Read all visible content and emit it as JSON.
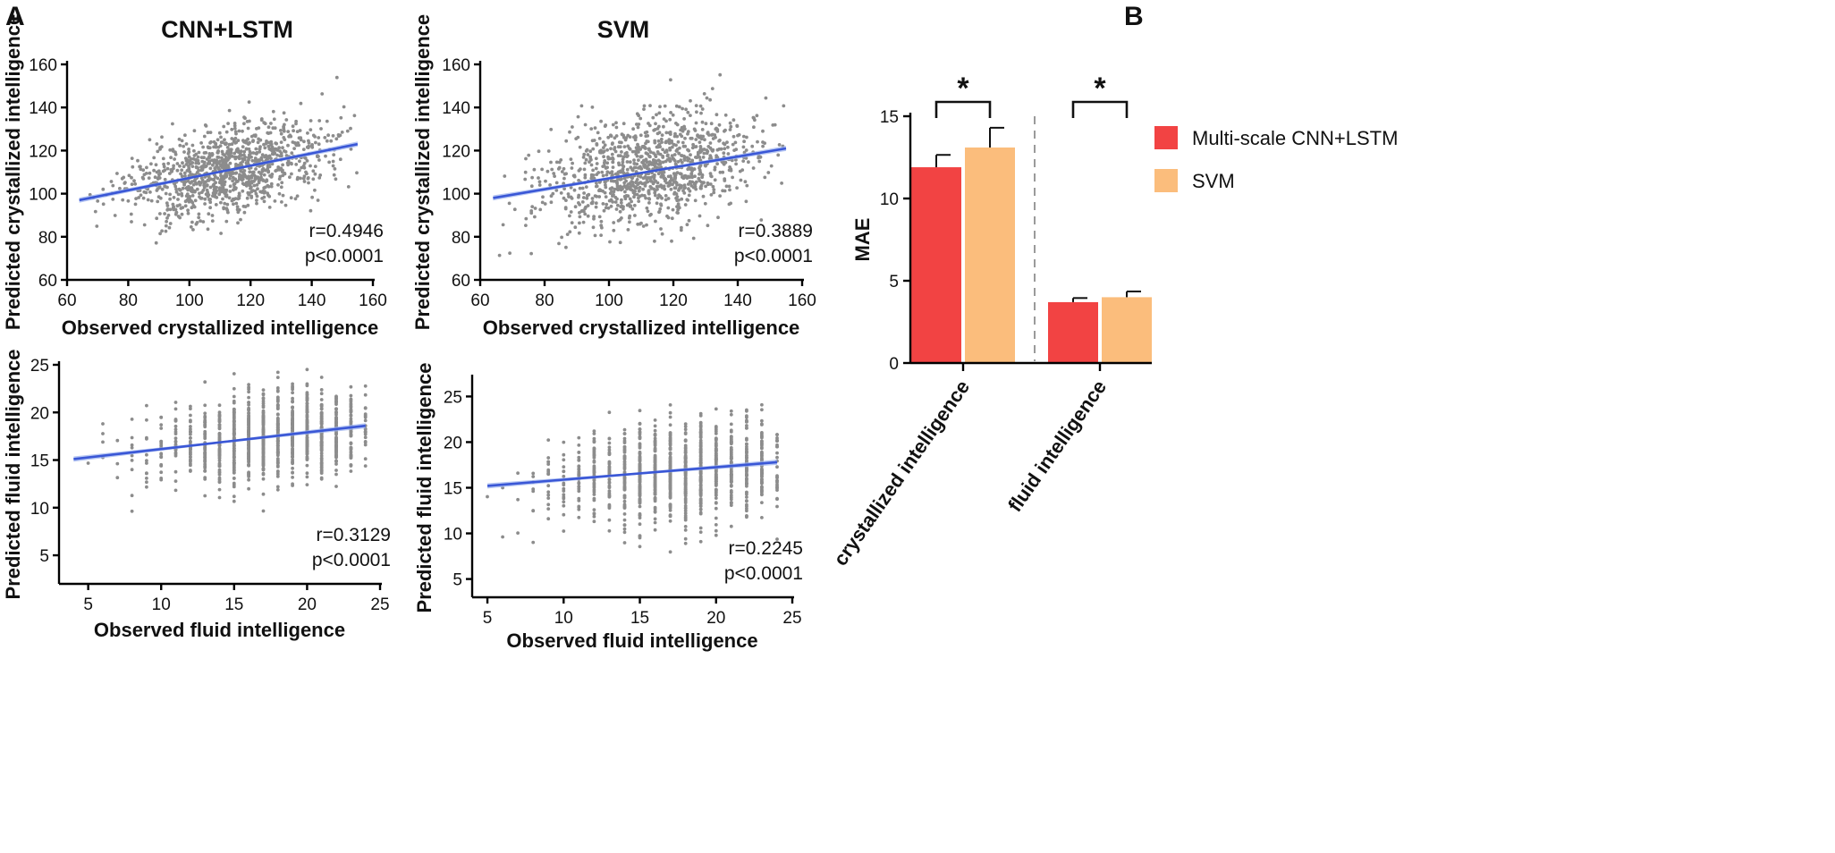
{
  "panel_labels": {
    "a": "A",
    "b": "B"
  },
  "colors": {
    "points": "#8c8c8c",
    "fit_line": "#3a57d6",
    "ci_band": "#9fb4ef",
    "bar_cnn": "#f24343",
    "bar_svm": "#fbbd7c",
    "divider": "#9a9a9a"
  },
  "chart_data": [
    {
      "id": "cnn_crystallized",
      "type": "scatter",
      "title": "CNN+LSTM",
      "xlabel": "Observed crystallized intelligence",
      "ylabel": "Predicted crystallized intelligence",
      "xlim": [
        60,
        160
      ],
      "ylim": [
        60,
        160
      ],
      "xticks": [
        60,
        80,
        100,
        120,
        140,
        160
      ],
      "yticks": [
        60,
        80,
        100,
        120,
        140,
        160
      ],
      "fit": {
        "x": [
          64,
          155
        ],
        "y": [
          97,
          123
        ]
      },
      "r_text": "r=0.4946",
      "p_text": "p<0.0001",
      "sample": {
        "n": 1100,
        "x_min": 64,
        "x_max": 155,
        "x_mean": 113,
        "x_sd": 17,
        "resid_sd": 9.5,
        "discrete": false,
        "seed": 11
      }
    },
    {
      "id": "svm_crystallized",
      "type": "scatter",
      "title": "SVM",
      "xlabel": "Observed crystallized intelligence",
      "ylabel": "Predicted crystallized intelligence",
      "xlim": [
        60,
        160
      ],
      "ylim": [
        60,
        160
      ],
      "xticks": [
        60,
        80,
        100,
        120,
        140,
        160
      ],
      "yticks": [
        60,
        80,
        100,
        120,
        140,
        160
      ],
      "fit": {
        "x": [
          64,
          155
        ],
        "y": [
          98,
          121
        ]
      },
      "r_text": "r=0.3889",
      "p_text": "p<0.0001",
      "sample": {
        "n": 1100,
        "x_min": 64,
        "x_max": 155,
        "x_mean": 113,
        "x_sd": 17,
        "resid_sd": 12,
        "discrete": false,
        "seed": 23
      }
    },
    {
      "id": "cnn_fluid",
      "type": "scatter",
      "title": "",
      "xlabel": "Observed fluid intelligence",
      "ylabel": "Predicted fluid intelligence",
      "xlim": [
        3,
        25
      ],
      "ylim": [
        2,
        25
      ],
      "xticks": [
        5,
        10,
        15,
        20,
        25
      ],
      "yticks": [
        5,
        10,
        15,
        20,
        25
      ],
      "fit": {
        "x": [
          4,
          24
        ],
        "y": [
          15.1,
          18.6
        ]
      },
      "r_text": "r=0.3129",
      "p_text": "p<0.0001",
      "sample": {
        "n": 1200,
        "x_min": 4,
        "x_max": 24,
        "x_mean": 18,
        "x_sd": 4.2,
        "resid_sd": 2.3,
        "discrete": true,
        "seed": 37
      }
    },
    {
      "id": "svm_fluid",
      "type": "scatter",
      "title": "",
      "xlabel": "Observed fluid intelligence",
      "ylabel": "Predicted fluid intelligence",
      "xlim": [
        4,
        25
      ],
      "ylim": [
        3,
        27
      ],
      "xticks": [
        5,
        10,
        15,
        20,
        25
      ],
      "yticks": [
        5,
        10,
        15,
        20,
        25
      ],
      "fit": {
        "x": [
          5,
          24
        ],
        "y": [
          15.2,
          17.8
        ]
      },
      "r_text": "r=0.2245",
      "p_text": "p<0.0001",
      "sample": {
        "n": 1200,
        "x_min": 5,
        "x_max": 24,
        "x_mean": 18,
        "x_sd": 4.2,
        "resid_sd": 2.6,
        "discrete": true,
        "seed": 53
      }
    },
    {
      "id": "mae_bars",
      "type": "bar",
      "title": "",
      "ylabel": "MAE",
      "ylim": [
        0,
        15
      ],
      "yticks": [
        0,
        5,
        10,
        15
      ],
      "categories": [
        "crystallized intelligence",
        "fluid intelligence"
      ],
      "series": [
        {
          "name": "Multi-scale CNN+LSTM",
          "values": [
            11.9,
            3.7
          ],
          "errors": [
            0.75,
            0.25
          ]
        },
        {
          "name": "SVM",
          "values": [
            13.1,
            4.0
          ],
          "errors": [
            1.2,
            0.35
          ]
        }
      ],
      "significance": [
        "*",
        "*"
      ],
      "legend_position": "right"
    }
  ]
}
